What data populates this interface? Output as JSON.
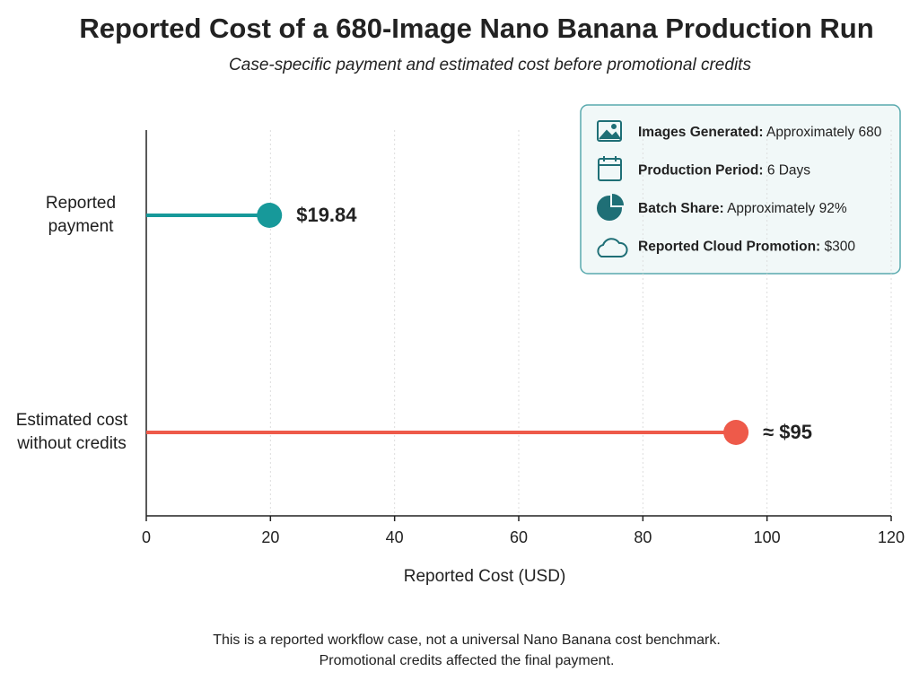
{
  "chart_data": {
    "type": "lollipop",
    "title": "Reported Cost of a 680-Image Nano Banana Production Run",
    "subtitle": "Case-specific payment and estimated cost before promotional credits",
    "categories": [
      "Reported payment",
      "Estimated cost without credits"
    ],
    "values": [
      19.84,
      95
    ],
    "value_labels": [
      "$19.84",
      "≈ $95"
    ],
    "colors": [
      "#17999a",
      "#ee5a4a"
    ],
    "x_label": "Reported Cost (USD)",
    "xlim": [
      0,
      120
    ],
    "xticks": [
      0,
      20,
      40,
      60,
      80,
      100,
      120
    ],
    "grid": true,
    "info_box": [
      {
        "label": "Images Generated:",
        "text": "Approximately 680"
      },
      {
        "label": "Production Period:",
        "text": "6 Days"
      },
      {
        "label": "Batch Share:",
        "text": "Approximately 92%"
      },
      {
        "label": "Reported Cloud Promotion:",
        "text": "$300"
      }
    ],
    "notes": [
      "This is a reported workflow case, not a universal Nano Banana cost benchmark.",
      "Promotional credits affected the final payment."
    ]
  }
}
